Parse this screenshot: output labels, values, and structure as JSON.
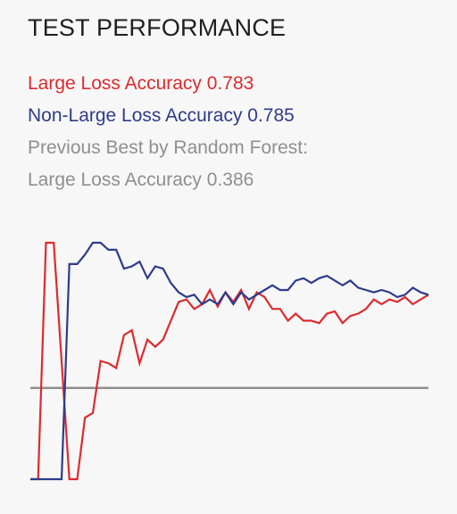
{
  "panel": {
    "title": "TEST PERFORMANCE",
    "large_loss_line": "Large Loss Accuracy 0.783",
    "non_large_loss_line": "Non-Large Loss Accuracy 0.785",
    "previous_best_label": "Previous Best by Random Forest:",
    "previous_best_line": "Large Loss Accuracy 0.386"
  },
  "colors": {
    "large_loss": "#dc2b2f",
    "non_large_loss": "#2e3c8a",
    "baseline": "#8f8f8f"
  },
  "chart_data": {
    "type": "line",
    "title": "",
    "xlabel": "",
    "ylabel": "",
    "ylim": [
      0,
      1
    ],
    "grid": false,
    "series": [
      {
        "color": "#dc2b2f",
        "values": [
          0.0,
          0.0,
          1.0,
          1.0,
          0.5,
          0.0,
          0.0,
          0.26,
          0.28,
          0.5,
          0.49,
          0.47,
          0.61,
          0.63,
          0.49,
          0.59,
          0.56,
          0.59,
          0.67,
          0.75,
          0.76,
          0.72,
          0.74,
          0.8,
          0.73,
          0.79,
          0.75,
          0.8,
          0.72,
          0.79,
          0.77,
          0.72,
          0.72,
          0.67,
          0.7,
          0.67,
          0.67,
          0.66,
          0.7,
          0.71,
          0.66,
          0.69,
          0.7,
          0.72,
          0.76,
          0.74,
          0.76,
          0.75,
          0.77,
          0.74,
          0.76,
          0.78
        ]
      },
      {
        "color": "#2e3c8a",
        "values": [
          0.0,
          0.0,
          0.0,
          0.0,
          0.0,
          0.91,
          0.91,
          0.95,
          1.0,
          1.0,
          0.97,
          0.97,
          0.89,
          0.9,
          0.92,
          0.85,
          0.9,
          0.89,
          0.83,
          0.79,
          0.77,
          0.78,
          0.74,
          0.76,
          0.74,
          0.79,
          0.74,
          0.79,
          0.76,
          0.78,
          0.8,
          0.82,
          0.8,
          0.8,
          0.84,
          0.85,
          0.83,
          0.85,
          0.86,
          0.84,
          0.82,
          0.84,
          0.81,
          0.8,
          0.79,
          0.8,
          0.79,
          0.77,
          0.78,
          0.81,
          0.79,
          0.78
        ]
      }
    ],
    "reference_line": {
      "y": 0.386
    }
  }
}
